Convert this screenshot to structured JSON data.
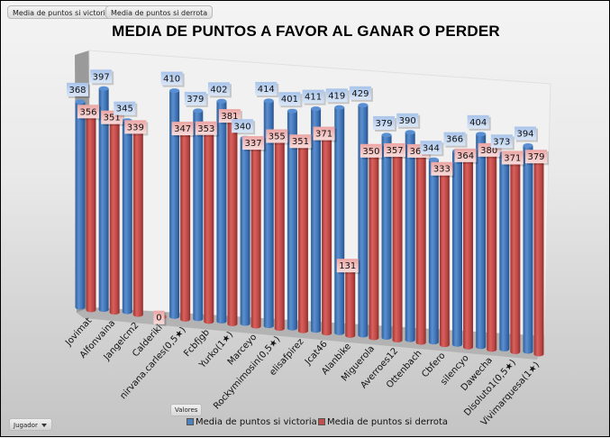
{
  "filter_buttons": [
    "Media de puntos si victoria",
    "Media de puntos si derrota"
  ],
  "axis_field_button": "Jugador",
  "values_field_button": "Valores",
  "colors": {
    "victoria": "#4f81bd",
    "derrota": "#c0504d"
  },
  "chart_data": {
    "type": "bar",
    "subtype": "3d-clustered-column",
    "title": "MEDIA DE PUNTOS A FAVOR AL GANAR O PERDER",
    "xlabel": "",
    "ylabel": "",
    "ylim": [
      0,
      450
    ],
    "grid": false,
    "legend_position": "bottom",
    "categories": [
      "Jovimat",
      "Alfonvaina",
      "Jangelcm2",
      "Calderiki",
      "nirvana.carles(0,5★)",
      "Fcbfjgb",
      "Yurko(1★)",
      "Marceyo",
      "Rockymimosin(0,5★)",
      "elisafpirez",
      "Jcat46",
      "Alanbike",
      "Miguerola",
      "Averroes12",
      "Ottenbach",
      "Cbfero",
      "silencyo",
      "Dawecha",
      "Disoluto1(0,5★)",
      "Vivimarquesa(1★)"
    ],
    "series": [
      {
        "name": "Media de puntos si victoria",
        "values": [
          368,
          397,
          345,
          null,
          410,
          379,
          402,
          340,
          414,
          401,
          411,
          419,
          429,
          379,
          390,
          344,
          366,
          404,
          373,
          394
        ]
      },
      {
        "name": "Media de puntos si derrota",
        "values": [
          356,
          351,
          339,
          0,
          347,
          353,
          381,
          337,
          355,
          351,
          371,
          131,
          350,
          357,
          361,
          333,
          364,
          380,
          371,
          379
        ]
      }
    ],
    "data_labels_shown": true
  },
  "legend": [
    "Media de puntos si victoria",
    "Media de puntos si derrota"
  ]
}
